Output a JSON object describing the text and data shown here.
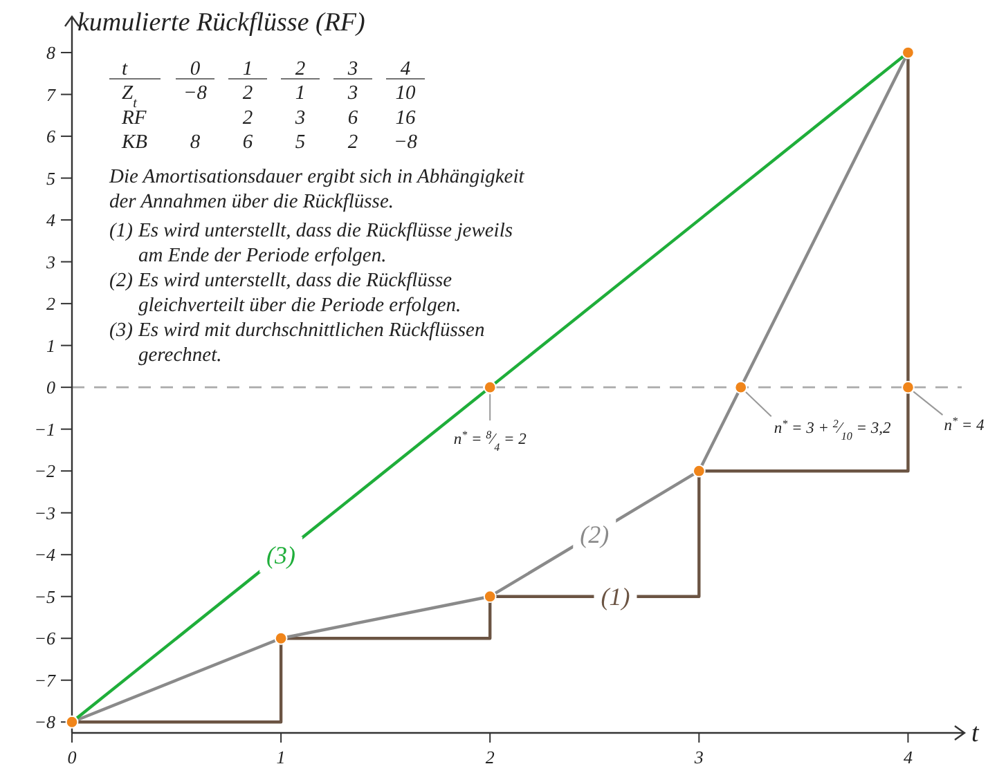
{
  "chart_data": {
    "type": "line",
    "xlabel": "t",
    "ylabel": "kumulierte Rückflüsse (RF)",
    "x": [
      0,
      1,
      2,
      3,
      4
    ],
    "xlim": [
      0,
      4.27
    ],
    "xticks": [
      0,
      1,
      2,
      3,
      4
    ],
    "ylim": [
      -8.26,
      8.86
    ],
    "yticks": [
      -8,
      -7,
      -6,
      -5,
      -4,
      -3,
      -2,
      -1,
      0,
      1,
      2,
      3,
      4,
      5,
      6,
      7,
      8
    ],
    "series": [
      {
        "name": "(1)",
        "type": "step",
        "color": "#6b5443",
        "values": [
          -8,
          -6,
          -5,
          -2,
          8
        ]
      },
      {
        "name": "(2)",
        "type": "line",
        "color": "#8a8a8a",
        "values": [
          -8,
          -6,
          -5,
          -2,
          8
        ]
      },
      {
        "name": "(3)",
        "type": "line",
        "color": "#1fae3a",
        "x": [
          0,
          4
        ],
        "values": [
          -8,
          8
        ]
      },
      {
        "type": "scatter",
        "color": "#f0851a",
        "marker": "circle",
        "x": [
          0,
          1,
          2,
          3,
          4,
          2,
          3.2,
          4
        ],
        "values": [
          -8,
          -6,
          -5,
          -2,
          8,
          0,
          0,
          0
        ]
      }
    ],
    "ref_lines": [
      {
        "axis": "y",
        "value": 0,
        "color": "#aaaaaa",
        "line_style": "dashed"
      }
    ],
    "annotations": [
      "t\t0\t1\t2\t3\t4",
      "Z$_{t}$\t−8\t2\t1\t3\t10",
      "RF\t\t2\t3\t6\t16",
      "KB\t8\t6\t5\t2\t−8",
      "Die Amortisationsdauer ergibt sich in Abhängigkeit der Annahmen über die Rückflüsse.",
      "(1) Es wird unterstellt, dass die Rückflüsse jeweils am Ende der Periode erfolgen.",
      "(2) Es wird unterstellt, dass die Rückflüsse gleichverteilt über die Periode erfolgen.",
      "(3) Es wird mit durchschnittlichen Rückflüssen gerechnet.",
      {
        "text": "n$^{*}$ = $^{8}$⁄$_{4}$ = 2",
        "x": 2,
        "y": 0
      },
      {
        "text": "n$^{*}$ = 3 + $^{2}$⁄$_{10}$ = 3,2",
        "x": 3.2,
        "y": 0
      },
      {
        "text": "n$^{*}$ = 4",
        "x": 4,
        "y": 0
      }
    ]
  }
}
